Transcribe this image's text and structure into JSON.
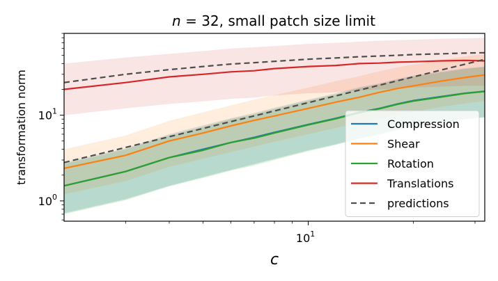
{
  "chart_data": {
    "type": "line",
    "title_var": "n",
    "title_rest": " = 32, small patch size limit",
    "xlabel": "c",
    "ylabel": "transformation norm",
    "xscale": "log",
    "yscale": "log",
    "xlim": [
      2,
      32
    ],
    "ylim": [
      0.58,
      90
    ],
    "x_ticks": [
      {
        "base": "10",
        "exp": "1",
        "value": 10
      }
    ],
    "y_ticks": [
      {
        "base": "10",
        "exp": "0",
        "value": 1
      },
      {
        "base": "10",
        "exp": "1",
        "value": 10
      }
    ],
    "legend_position": "lower-right",
    "x": [
      2,
      3,
      4,
      5,
      6,
      7,
      8,
      10,
      12,
      14,
      16,
      18,
      20,
      24,
      28,
      32
    ],
    "series": [
      {
        "name": "Compression",
        "color": "#1f77b4",
        "style": "solid",
        "values": [
          1.5,
          2.2,
          3.2,
          4.0,
          4.8,
          5.5,
          6.3,
          7.8,
          9.2,
          10.8,
          12.0,
          13.5,
          14.8,
          16.5,
          18.0,
          19.0
        ],
        "band_low": [
          0.72,
          1.05,
          1.5,
          1.9,
          2.3,
          2.7,
          3.1,
          3.9,
          4.6,
          5.4,
          6.0,
          6.8,
          7.4,
          8.3,
          9.0,
          9.5
        ],
        "band_high": [
          2.8,
          4.1,
          6.0,
          7.6,
          9.2,
          10.6,
          12.2,
          15.2,
          18.0,
          21.2,
          23.6,
          26.5,
          29.0,
          32.3,
          35.2,
          37.0
        ]
      },
      {
        "name": "Shear",
        "color": "#ff7f0e",
        "style": "solid",
        "values": [
          2.4,
          3.4,
          5.0,
          6.2,
          7.5,
          8.7,
          9.8,
          12.0,
          14.2,
          16.2,
          18.5,
          20.5,
          22.0,
          25.0,
          27.5,
          29.5
        ],
        "band_low": [
          1.2,
          1.7,
          2.5,
          3.1,
          3.7,
          4.3,
          4.9,
          6.0,
          7.1,
          8.1,
          9.2,
          10.2,
          11.0,
          12.5,
          13.7,
          14.7
        ],
        "band_high": [
          4.0,
          5.8,
          8.6,
          10.8,
          13.0,
          15.2,
          17.2,
          21.0,
          25.0,
          28.5,
          32.6,
          36.2,
          38.8,
          44.0,
          48.4,
          52.0
        ]
      },
      {
        "name": "Rotation",
        "color": "#2ca02c",
        "style": "solid",
        "values": [
          1.5,
          2.2,
          3.2,
          3.9,
          4.8,
          5.4,
          6.2,
          7.7,
          9.1,
          10.7,
          11.9,
          13.4,
          14.6,
          16.3,
          17.9,
          18.9
        ],
        "band_low": [
          0.7,
          1.02,
          1.48,
          1.85,
          2.25,
          2.6,
          3.0,
          3.8,
          4.5,
          5.3,
          5.9,
          6.7,
          7.3,
          8.2,
          8.9,
          9.4
        ],
        "band_high": [
          2.7,
          4.0,
          5.8,
          7.3,
          9.0,
          10.2,
          11.8,
          14.8,
          17.5,
          20.6,
          23.0,
          25.8,
          28.2,
          31.5,
          34.5,
          36.5
        ]
      },
      {
        "name": "Translations",
        "color": "#d62728",
        "style": "solid",
        "values": [
          20,
          24,
          28,
          30,
          32,
          33,
          35,
          37,
          38,
          40,
          40.5,
          41.5,
          42,
          43,
          43.5,
          43
        ],
        "band_low": [
          10,
          12,
          13.5,
          14.5,
          15.5,
          16,
          17,
          18,
          18.5,
          19.5,
          20,
          20.5,
          21,
          21.5,
          22,
          22
        ],
        "band_high": [
          40,
          47,
          52,
          56,
          60,
          62,
          64,
          68,
          70,
          72,
          74,
          75,
          76,
          78,
          79,
          80
        ]
      },
      {
        "name": "predictions",
        "color": "#4d4d4d",
        "style": "dashed",
        "values": [
          24,
          30,
          34,
          37,
          39.5,
          41,
          42.5,
          45,
          46.5,
          48,
          49,
          50,
          51,
          52,
          53,
          53.5
        ]
      },
      {
        "name": "predictions_low",
        "color": "#4d4d4d",
        "style": "dashed",
        "legend": false,
        "values": [
          2.8,
          4.2,
          5.6,
          7.0,
          8.4,
          9.8,
          11.2,
          14.0,
          16.8,
          19.6,
          22.4,
          25.2,
          28.0,
          33.6,
          39.2,
          44.8
        ]
      }
    ]
  }
}
